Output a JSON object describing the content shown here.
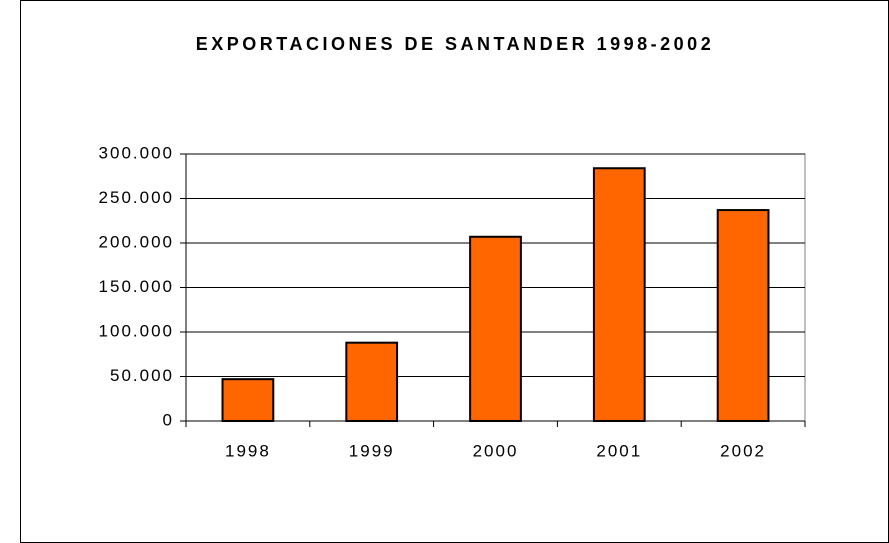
{
  "chart_data": {
    "type": "bar",
    "title": "EXPORTACIONES DE SANTANDER 1998-2002",
    "categories": [
      "1998",
      "1999",
      "2000",
      "2001",
      "2002"
    ],
    "values": [
      47000,
      88000,
      207000,
      284000,
      237000
    ],
    "color": "#ff6600",
    "ylim": [
      0,
      300000
    ],
    "yticks": [
      0,
      {
        "value": 50000,
        "label": "50.000"
      },
      {
        "value": 100000,
        "label": "100.000"
      },
      {
        "value": 150000,
        "label": "150.000"
      },
      {
        "value": 200000,
        "label": "200.000"
      },
      {
        "value": 250000,
        "label": "250.000"
      },
      {
        "value": 300000,
        "label": "300.000"
      }
    ],
    "grid": true
  }
}
